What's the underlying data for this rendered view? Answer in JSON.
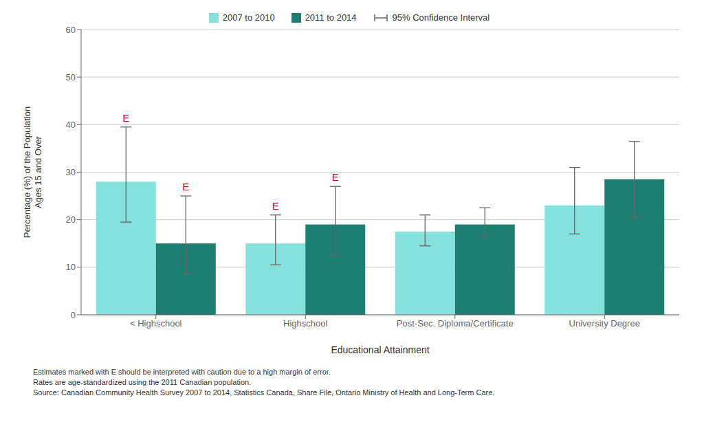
{
  "chart_data": {
    "type": "bar",
    "categories": [
      "< Highschool",
      "Highschool",
      "Post-Sec. Diploma/Certificate",
      "University Degree"
    ],
    "series": [
      {
        "name": "2007 to 2010",
        "color": "#86E0DC",
        "values": [
          28.0,
          15.0,
          17.5,
          23.0
        ],
        "ci_lower": [
          19.5,
          10.5,
          14.5,
          17.0
        ],
        "ci_upper": [
          39.5,
          21.0,
          21.0,
          31.0
        ]
      },
      {
        "name": "2011 to 2014",
        "color": "#1E7E72",
        "values": [
          15.0,
          19.0,
          19.0,
          28.5
        ],
        "ci_lower": [
          8.5,
          12.5,
          16.5,
          20.5
        ],
        "ci_upper": [
          25.0,
          27.0,
          22.5,
          36.5
        ]
      }
    ],
    "ci": {
      "label": "95% Confidence Interval",
      "color": "#666666"
    },
    "annotations": [
      {
        "series": "2007 to 2010",
        "category": "< Highschool",
        "text": "E",
        "color": "#cc0033"
      },
      {
        "series": "2007 to 2010",
        "category": "Highschool",
        "text": "E",
        "color": "#cc0033"
      },
      {
        "series": "2011 to 2014",
        "category": "< Highschool",
        "text": "E",
        "color": "#cc0033"
      },
      {
        "series": "2011 to 2014",
        "category": "Highschool",
        "text": "E",
        "color": "#cc0033"
      }
    ],
    "xlabel": "Educational Attainment",
    "ylabel": "Percentage (%) of the Population\nAges 15 and Over",
    "ylim": [
      0,
      60
    ],
    "yticks": [
      0,
      10,
      20,
      30,
      40,
      50,
      60
    ],
    "grid": true,
    "legend": "top",
    "footnotes": [
      "Estimates marked with E should be interpreted with caution due to a high margin of error.",
      "Rates are age-standardized using the 2011 Canadian population.",
      "Source: Canadian Community Health Survey 2007 to 2014, Statistics Canada, Share File, Ontario Ministry of Health and Long-Term Care."
    ]
  }
}
